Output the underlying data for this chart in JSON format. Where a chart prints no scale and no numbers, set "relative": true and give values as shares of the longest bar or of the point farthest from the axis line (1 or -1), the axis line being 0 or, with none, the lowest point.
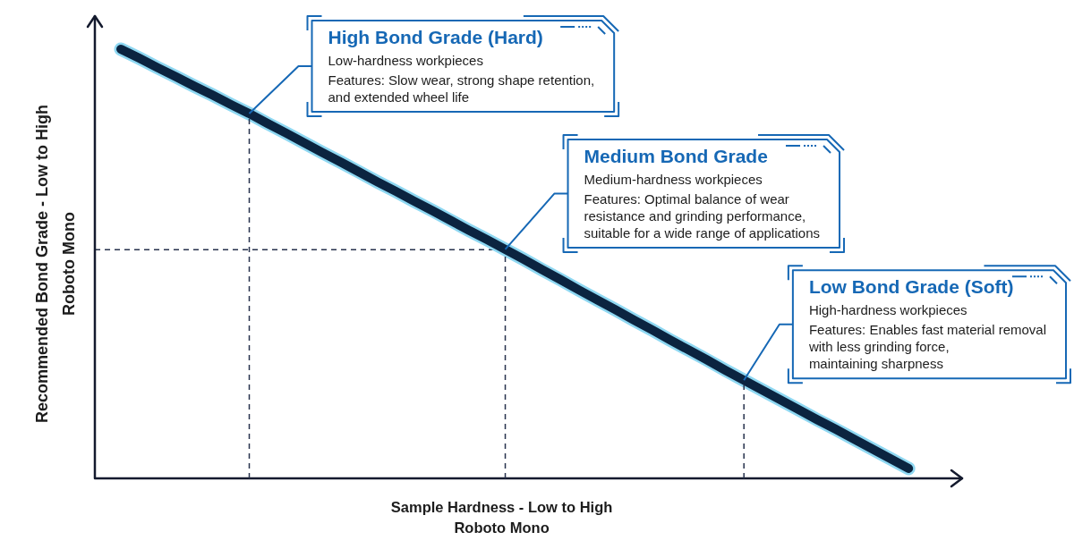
{
  "chart_data": {
    "type": "line",
    "xlabel": "Sample Hardness - Low to High\nRoboto Mono",
    "ylabel": "Recommended Bond Grade - Low to High\nRoboto Mono",
    "categories": [
      null,
      null,
      null,
      null,
      null,
      null,
      null,
      null,
      null,
      null,
      null,
      null,
      null,
      null,
      null,
      null,
      null,
      null,
      null,
      null,
      null,
      null,
      null,
      null,
      null,
      null,
      null,
      null,
      null,
      null,
      null,
      null,
      null,
      null,
      null,
      null,
      null,
      null,
      null,
      null,
      null,
      null,
      null,
      null
    ],
    "values": [
      1.0,
      0.979,
      0.957,
      0.936,
      0.914,
      0.893,
      0.871,
      0.85,
      0.827,
      0.805,
      0.782,
      0.759,
      0.737,
      0.714,
      0.691,
      0.669,
      0.646,
      0.624,
      0.601,
      0.578,
      0.556,
      0.533,
      0.51,
      0.486,
      0.463,
      0.439,
      0.416,
      0.393,
      0.369,
      0.346,
      0.322,
      0.299,
      0.276,
      0.252,
      0.229,
      0.206,
      0.183,
      0.16,
      0.137,
      0.115,
      0.092,
      0.069,
      0.046,
      0.023
    ],
    "color": "#0b2440",
    "relative": true,
    "marker": "none",
    "line_style": "solid",
    "ref_lines": [
      {
        "axis": "y",
        "value": 0.533,
        "color": "#27324d",
        "line_style": "dashed"
      }
    ],
    "annotations": [
      "High Bond Grade (Hard)\nLow-hardness workpieces\nFeatures: Slow wear, strong shape retention,\nand extended wheel life",
      "Medium Bond Grade\nMedium-hardness workpieces\nFeatures: Optimal balance of wear\nresistance and grinding performance,\nsuitable for a wide range of applications",
      "Low Bond Grade (Soft)\nHigh-hardness workpieces\nFeatures: Enables fast material removal\nwith less grinding force,\nmaintaining sharpness"
    ]
  }
}
